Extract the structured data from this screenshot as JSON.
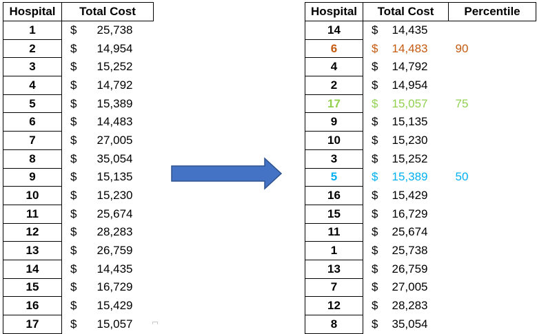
{
  "left_table": {
    "headers": [
      "Hospital",
      "Total Cost"
    ],
    "rows": [
      {
        "hospital": "1",
        "currency": "$",
        "cost": "25,738"
      },
      {
        "hospital": "2",
        "currency": "$",
        "cost": "14,954"
      },
      {
        "hospital": "3",
        "currency": "$",
        "cost": "15,252"
      },
      {
        "hospital": "4",
        "currency": "$",
        "cost": "14,792"
      },
      {
        "hospital": "5",
        "currency": "$",
        "cost": "15,389"
      },
      {
        "hospital": "6",
        "currency": "$",
        "cost": "14,483"
      },
      {
        "hospital": "7",
        "currency": "$",
        "cost": "27,005"
      },
      {
        "hospital": "8",
        "currency": "$",
        "cost": "35,054"
      },
      {
        "hospital": "9",
        "currency": "$",
        "cost": "15,135"
      },
      {
        "hospital": "10",
        "currency": "$",
        "cost": "15,230"
      },
      {
        "hospital": "11",
        "currency": "$",
        "cost": "25,674"
      },
      {
        "hospital": "12",
        "currency": "$",
        "cost": "28,283"
      },
      {
        "hospital": "13",
        "currency": "$",
        "cost": "26,759"
      },
      {
        "hospital": "14",
        "currency": "$",
        "cost": "14,435"
      },
      {
        "hospital": "15",
        "currency": "$",
        "cost": "16,729"
      },
      {
        "hospital": "16",
        "currency": "$",
        "cost": "15,429"
      },
      {
        "hospital": "17",
        "currency": "$",
        "cost": "15,057"
      }
    ]
  },
  "right_table": {
    "headers": [
      "Hospital",
      "Total Cost",
      "Percentile"
    ],
    "rows": [
      {
        "hospital": "14",
        "currency": "$",
        "cost": "14,435",
        "percentile": "",
        "highlight": ""
      },
      {
        "hospital": "6",
        "currency": "$",
        "cost": "14,483",
        "percentile": "90",
        "highlight": "orange"
      },
      {
        "hospital": "4",
        "currency": "$",
        "cost": "14,792",
        "percentile": "",
        "highlight": ""
      },
      {
        "hospital": "2",
        "currency": "$",
        "cost": "14,954",
        "percentile": "",
        "highlight": ""
      },
      {
        "hospital": "17",
        "currency": "$",
        "cost": "15,057",
        "percentile": "75",
        "highlight": "green"
      },
      {
        "hospital": "9",
        "currency": "$",
        "cost": "15,135",
        "percentile": "",
        "highlight": ""
      },
      {
        "hospital": "10",
        "currency": "$",
        "cost": "15,230",
        "percentile": "",
        "highlight": ""
      },
      {
        "hospital": "3",
        "currency": "$",
        "cost": "15,252",
        "percentile": "",
        "highlight": ""
      },
      {
        "hospital": "5",
        "currency": "$",
        "cost": "15,389",
        "percentile": "50",
        "highlight": "blue"
      },
      {
        "hospital": "16",
        "currency": "$",
        "cost": "15,429",
        "percentile": "",
        "highlight": ""
      },
      {
        "hospital": "15",
        "currency": "$",
        "cost": "16,729",
        "percentile": "",
        "highlight": ""
      },
      {
        "hospital": "11",
        "currency": "$",
        "cost": "25,674",
        "percentile": "",
        "highlight": ""
      },
      {
        "hospital": "1",
        "currency": "$",
        "cost": "25,738",
        "percentile": "",
        "highlight": ""
      },
      {
        "hospital": "13",
        "currency": "$",
        "cost": "26,759",
        "percentile": "",
        "highlight": ""
      },
      {
        "hospital": "7",
        "currency": "$",
        "cost": "27,005",
        "percentile": "",
        "highlight": ""
      },
      {
        "hospital": "12",
        "currency": "$",
        "cost": "28,283",
        "percentile": "",
        "highlight": ""
      },
      {
        "hospital": "8",
        "currency": "$",
        "cost": "35,054",
        "percentile": "",
        "highlight": ""
      }
    ]
  },
  "arrow": {
    "icon": "right-arrow-icon",
    "fill": "#4472c4",
    "stroke": "#2f528f"
  },
  "colors": {
    "orange": "#c55a11",
    "green": "#92d050",
    "blue": "#00b0f0"
  }
}
